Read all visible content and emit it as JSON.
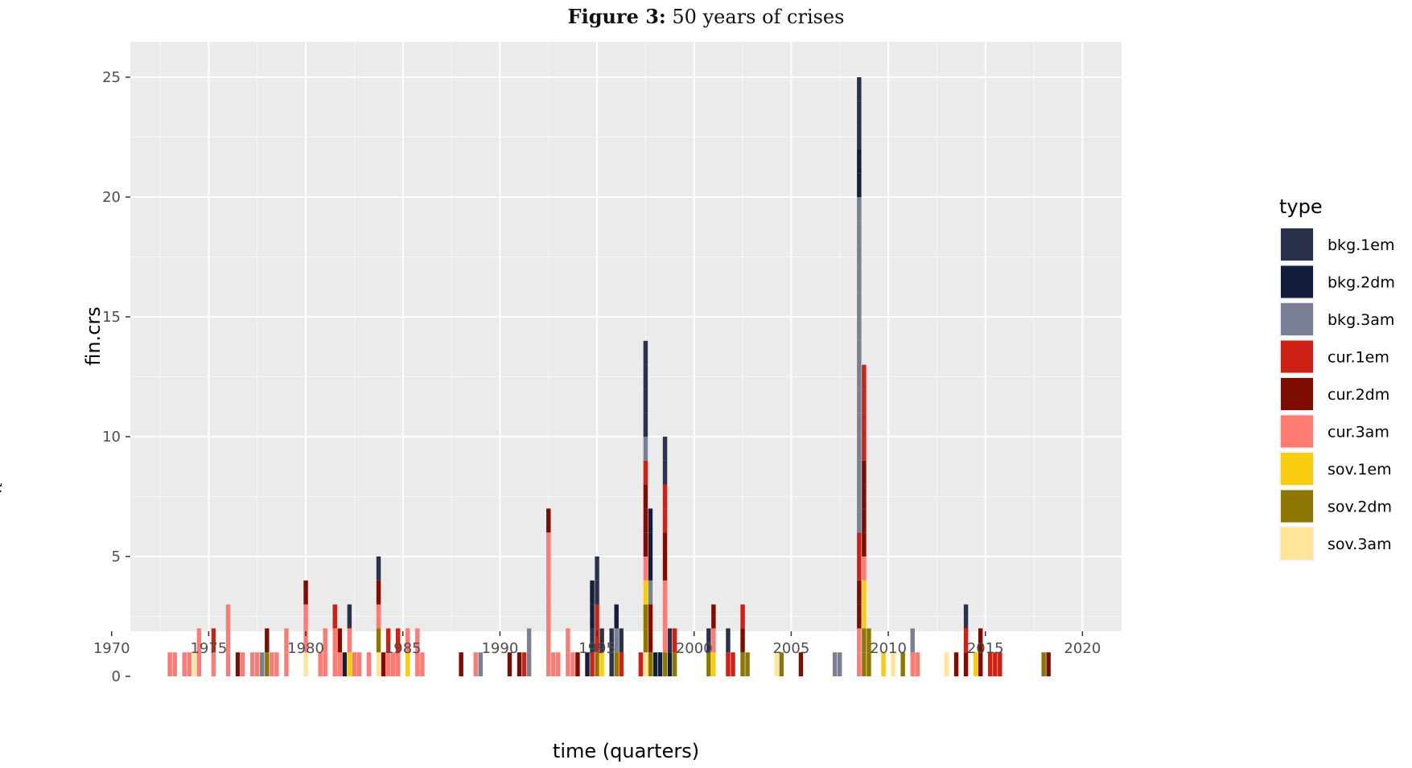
{
  "caption": {
    "label": "Figure 3:",
    "text": "50 years of crises"
  },
  "side_mark": "xlix",
  "chart_data": {
    "type": "bar",
    "stacked": true,
    "xlabel": "time (quarters)",
    "ylabel": "fin.crs",
    "xlim": [
      1970,
      2020
    ],
    "ylim": [
      0,
      25
    ],
    "x_ticks": [
      1970,
      1975,
      1980,
      1985,
      1990,
      1995,
      2000,
      2005,
      2010,
      2015,
      2020
    ],
    "y_ticks": [
      0,
      5,
      10,
      15,
      20,
      25
    ],
    "grid": true,
    "legend": {
      "title": "type",
      "position": "right"
    },
    "series": [
      {
        "name": "bkg.1em",
        "color": "#2a314a"
      },
      {
        "name": "bkg.2dm",
        "color": "#131e3a"
      },
      {
        "name": "bkg.3am",
        "color": "#7a8093"
      },
      {
        "name": "cur.1em",
        "color": "#cc2114"
      },
      {
        "name": "cur.2dm",
        "color": "#7e0d00"
      },
      {
        "name": "cur.3am",
        "color": "#fe7a73"
      },
      {
        "name": "sov.1em",
        "color": "#f9cd0f"
      },
      {
        "name": "sov.2dm",
        "color": "#8e7700"
      },
      {
        "name": "sov.3am",
        "color": "#ffe49a"
      }
    ],
    "points": [
      {
        "x": 1973.0,
        "stack": [
          [
            "cur.3am",
            1
          ]
        ]
      },
      {
        "x": 1973.25,
        "stack": [
          [
            "cur.3am",
            1
          ]
        ]
      },
      {
        "x": 1973.75,
        "stack": [
          [
            "cur.3am",
            1
          ]
        ]
      },
      {
        "x": 1974.0,
        "stack": [
          [
            "cur.3am",
            1
          ]
        ]
      },
      {
        "x": 1974.25,
        "stack": [
          [
            "sov.3am",
            1
          ]
        ]
      },
      {
        "x": 1974.5,
        "stack": [
          [
            "cur.3am",
            2
          ]
        ]
      },
      {
        "x": 1975.25,
        "stack": [
          [
            "cur.3am",
            1
          ],
          [
            "cur.1em",
            1
          ]
        ]
      },
      {
        "x": 1976.0,
        "stack": [
          [
            "cur.3am",
            3
          ]
        ]
      },
      {
        "x": 1976.5,
        "stack": [
          [
            "cur.2dm",
            1
          ]
        ]
      },
      {
        "x": 1976.75,
        "stack": [
          [
            "cur.3am",
            1
          ]
        ]
      },
      {
        "x": 1977.25,
        "stack": [
          [
            "cur.3am",
            1
          ]
        ]
      },
      {
        "x": 1977.5,
        "stack": [
          [
            "cur.3am",
            1
          ]
        ]
      },
      {
        "x": 1977.75,
        "stack": [
          [
            "bkg.3am",
            1
          ]
        ]
      },
      {
        "x": 1978.0,
        "stack": [
          [
            "sov.2dm",
            1
          ],
          [
            "cur.2dm",
            1
          ]
        ]
      },
      {
        "x": 1978.25,
        "stack": [
          [
            "cur.3am",
            1
          ]
        ]
      },
      {
        "x": 1978.5,
        "stack": [
          [
            "cur.3am",
            1
          ]
        ]
      },
      {
        "x": 1979.0,
        "stack": [
          [
            "cur.3am",
            2
          ]
        ]
      },
      {
        "x": 1980.0,
        "stack": [
          [
            "sov.3am",
            1
          ],
          [
            "cur.3am",
            2
          ],
          [
            "cur.2dm",
            1
          ]
        ]
      },
      {
        "x": 1980.75,
        "stack": [
          [
            "cur.3am",
            1
          ]
        ]
      },
      {
        "x": 1981.0,
        "stack": [
          [
            "cur.3am",
            2
          ]
        ]
      },
      {
        "x": 1981.5,
        "stack": [
          [
            "cur.3am",
            2
          ],
          [
            "cur.1em",
            1
          ]
        ]
      },
      {
        "x": 1981.75,
        "stack": [
          [
            "cur.3am",
            1
          ],
          [
            "cur.2dm",
            1
          ]
        ]
      },
      {
        "x": 1982.0,
        "stack": [
          [
            "bkg.2dm",
            1
          ]
        ]
      },
      {
        "x": 1982.25,
        "stack": [
          [
            "sov.1em",
            1
          ],
          [
            "cur.3am",
            1
          ],
          [
            "bkg.1em",
            1
          ]
        ]
      },
      {
        "x": 1982.5,
        "stack": [
          [
            "cur.3am",
            1
          ]
        ]
      },
      {
        "x": 1982.75,
        "stack": [
          [
            "cur.3am",
            1
          ]
        ]
      },
      {
        "x": 1983.25,
        "stack": [
          [
            "cur.3am",
            1
          ]
        ]
      },
      {
        "x": 1983.75,
        "stack": [
          [
            "sov.3am",
            1
          ],
          [
            "sov.2dm",
            1
          ],
          [
            "cur.3am",
            1
          ],
          [
            "cur.2dm",
            1
          ],
          [
            "bkg.1em",
            1
          ]
        ]
      },
      {
        "x": 1984.0,
        "stack": [
          [
            "cur.2dm",
            1
          ]
        ]
      },
      {
        "x": 1984.25,
        "stack": [
          [
            "cur.3am",
            1
          ],
          [
            "cur.1em",
            1
          ]
        ]
      },
      {
        "x": 1984.5,
        "stack": [
          [
            "cur.3am",
            1
          ]
        ]
      },
      {
        "x": 1984.75,
        "stack": [
          [
            "cur.3am",
            1
          ],
          [
            "cur.1em",
            1
          ]
        ]
      },
      {
        "x": 1985.25,
        "stack": [
          [
            "sov.1em",
            1
          ],
          [
            "cur.3am",
            1
          ]
        ]
      },
      {
        "x": 1985.75,
        "stack": [
          [
            "cur.3am",
            2
          ]
        ]
      },
      {
        "x": 1986.0,
        "stack": [
          [
            "cur.3am",
            1
          ]
        ]
      },
      {
        "x": 1988.0,
        "stack": [
          [
            "cur.2dm",
            1
          ]
        ]
      },
      {
        "x": 1988.75,
        "stack": [
          [
            "cur.3am",
            1
          ]
        ]
      },
      {
        "x": 1989.0,
        "stack": [
          [
            "bkg.3am",
            1
          ]
        ]
      },
      {
        "x": 1990.5,
        "stack": [
          [
            "cur.2dm",
            1
          ]
        ]
      },
      {
        "x": 1991.0,
        "stack": [
          [
            "cur.2dm",
            1
          ]
        ]
      },
      {
        "x": 1991.25,
        "stack": [
          [
            "cur.1em",
            1
          ]
        ]
      },
      {
        "x": 1991.5,
        "stack": [
          [
            "bkg.3am",
            2
          ]
        ]
      },
      {
        "x": 1992.5,
        "stack": [
          [
            "cur.3am",
            6
          ],
          [
            "cur.2dm",
            1
          ]
        ]
      },
      {
        "x": 1992.75,
        "stack": [
          [
            "cur.3am",
            1
          ]
        ]
      },
      {
        "x": 1993.0,
        "stack": [
          [
            "cur.3am",
            1
          ]
        ]
      },
      {
        "x": 1993.5,
        "stack": [
          [
            "cur.3am",
            2
          ]
        ]
      },
      {
        "x": 1993.75,
        "stack": [
          [
            "cur.3am",
            1
          ]
        ]
      },
      {
        "x": 1994.0,
        "stack": [
          [
            "cur.2dm",
            1
          ]
        ]
      },
      {
        "x": 1994.5,
        "stack": [
          [
            "bkg.2dm",
            1
          ]
        ]
      },
      {
        "x": 1994.75,
        "stack": [
          [
            "cur.1em",
            1
          ],
          [
            "bkg.1em",
            1
          ],
          [
            "bkg.2dm",
            2
          ]
        ]
      },
      {
        "x": 1995.0,
        "stack": [
          [
            "sov.2dm",
            1
          ],
          [
            "cur.1em",
            2
          ],
          [
            "bkg.1em",
            2
          ]
        ]
      },
      {
        "x": 1995.25,
        "stack": [
          [
            "sov.1em",
            1
          ],
          [
            "bkg.1em",
            1
          ]
        ]
      },
      {
        "x": 1995.75,
        "stack": [
          [
            "bkg.1em",
            2
          ]
        ]
      },
      {
        "x": 1996.0,
        "stack": [
          [
            "sov.2dm",
            1
          ],
          [
            "bkg.3am",
            1
          ],
          [
            "bkg.2dm",
            1
          ]
        ]
      },
      {
        "x": 1996.25,
        "stack": [
          [
            "cur.1em",
            1
          ],
          [
            "bkg.1em",
            1
          ]
        ]
      },
      {
        "x": 1997.25,
        "stack": [
          [
            "cur.1em",
            1
          ]
        ]
      },
      {
        "x": 1997.5,
        "stack": [
          [
            "sov.3am",
            1
          ],
          [
            "sov.2dm",
            2
          ],
          [
            "sov.1em",
            1
          ],
          [
            "cur.3am",
            1
          ],
          [
            "cur.2dm",
            3
          ],
          [
            "cur.1em",
            1
          ],
          [
            "bkg.3am",
            1
          ],
          [
            "bkg.1em",
            4
          ]
        ]
      },
      {
        "x": 1997.75,
        "stack": [
          [
            "sov.2dm",
            1
          ],
          [
            "cur.2dm",
            2
          ],
          [
            "bkg.3am",
            1
          ],
          [
            "bkg.2dm",
            3
          ]
        ]
      },
      {
        "x": 1998.0,
        "stack": [
          [
            "bkg.2dm",
            1
          ]
        ]
      },
      {
        "x": 1998.25,
        "stack": [
          [
            "bkg.2dm",
            1
          ]
        ]
      },
      {
        "x": 1998.5,
        "stack": [
          [
            "sov.2dm",
            1
          ],
          [
            "cur.3am",
            3
          ],
          [
            "cur.2dm",
            2
          ],
          [
            "cur.1em",
            2
          ],
          [
            "bkg.1em",
            2
          ]
        ]
      },
      {
        "x": 1998.75,
        "stack": [
          [
            "bkg.2dm",
            1
          ],
          [
            "bkg.1em",
            1
          ]
        ]
      },
      {
        "x": 1999.0,
        "stack": [
          [
            "sov.2dm",
            1
          ],
          [
            "cur.1em",
            1
          ]
        ]
      },
      {
        "x": 2000.75,
        "stack": [
          [
            "sov.2dm",
            1
          ],
          [
            "bkg.1em",
            1
          ]
        ]
      },
      {
        "x": 2001.0,
        "stack": [
          [
            "sov.1em",
            1
          ],
          [
            "cur.3am",
            1
          ],
          [
            "cur.2dm",
            1
          ]
        ]
      },
      {
        "x": 2001.75,
        "stack": [
          [
            "cur.1em",
            1
          ],
          [
            "bkg.1em",
            1
          ]
        ]
      },
      {
        "x": 2002.0,
        "stack": [
          [
            "cur.1em",
            1
          ]
        ]
      },
      {
        "x": 2002.5,
        "stack": [
          [
            "sov.2dm",
            1
          ],
          [
            "cur.2dm",
            1
          ],
          [
            "cur.1em",
            1
          ]
        ]
      },
      {
        "x": 2002.75,
        "stack": [
          [
            "sov.2dm",
            1
          ]
        ]
      },
      {
        "x": 2004.25,
        "stack": [
          [
            "sov.3am",
            1
          ]
        ]
      },
      {
        "x": 2004.5,
        "stack": [
          [
            "sov.2dm",
            1
          ]
        ]
      },
      {
        "x": 2005.5,
        "stack": [
          [
            "cur.2dm",
            1
          ]
        ]
      },
      {
        "x": 2007.25,
        "stack": [
          [
            "bkg.3am",
            1
          ]
        ]
      },
      {
        "x": 2007.5,
        "stack": [
          [
            "bkg.3am",
            1
          ]
        ]
      },
      {
        "x": 2008.5,
        "stack": [
          [
            "cur.3am",
            2
          ],
          [
            "cur.2dm",
            2
          ],
          [
            "cur.1em",
            2
          ],
          [
            "bkg.3am",
            14
          ],
          [
            "bkg.2dm",
            2
          ],
          [
            "bkg.1em",
            3
          ]
        ]
      },
      {
        "x": 2008.75,
        "stack": [
          [
            "sov.2dm",
            2
          ],
          [
            "sov.1em",
            2
          ],
          [
            "cur.3am",
            1
          ],
          [
            "cur.2dm",
            4
          ],
          [
            "cur.1em",
            4
          ]
        ]
      },
      {
        "x": 2009.0,
        "stack": [
          [
            "sov.2dm",
            2
          ]
        ]
      },
      {
        "x": 2009.75,
        "stack": [
          [
            "sov.1em",
            1
          ]
        ]
      },
      {
        "x": 2010.25,
        "stack": [
          [
            "sov.3am",
            1
          ]
        ]
      },
      {
        "x": 2010.75,
        "stack": [
          [
            "sov.2dm",
            1
          ]
        ]
      },
      {
        "x": 2011.25,
        "stack": [
          [
            "cur.3am",
            1
          ],
          [
            "bkg.3am",
            1
          ]
        ]
      },
      {
        "x": 2011.5,
        "stack": [
          [
            "cur.3am",
            1
          ]
        ]
      },
      {
        "x": 2013.0,
        "stack": [
          [
            "sov.3am",
            1
          ]
        ]
      },
      {
        "x": 2013.5,
        "stack": [
          [
            "cur.2dm",
            1
          ]
        ]
      },
      {
        "x": 2014.0,
        "stack": [
          [
            "cur.2dm",
            1
          ],
          [
            "cur.1em",
            1
          ],
          [
            "bkg.1em",
            1
          ]
        ]
      },
      {
        "x": 2014.5,
        "stack": [
          [
            "sov.1em",
            1
          ]
        ]
      },
      {
        "x": 2014.75,
        "stack": [
          [
            "cur.2dm",
            2
          ]
        ]
      },
      {
        "x": 2015.25,
        "stack": [
          [
            "cur.1em",
            1
          ]
        ]
      },
      {
        "x": 2015.5,
        "stack": [
          [
            "cur.1em",
            1
          ]
        ]
      },
      {
        "x": 2015.75,
        "stack": [
          [
            "cur.1em",
            1
          ]
        ]
      },
      {
        "x": 2018.0,
        "stack": [
          [
            "sov.2dm",
            1
          ]
        ]
      },
      {
        "x": 2018.25,
        "stack": [
          [
            "cur.2dm",
            1
          ]
        ]
      }
    ]
  }
}
